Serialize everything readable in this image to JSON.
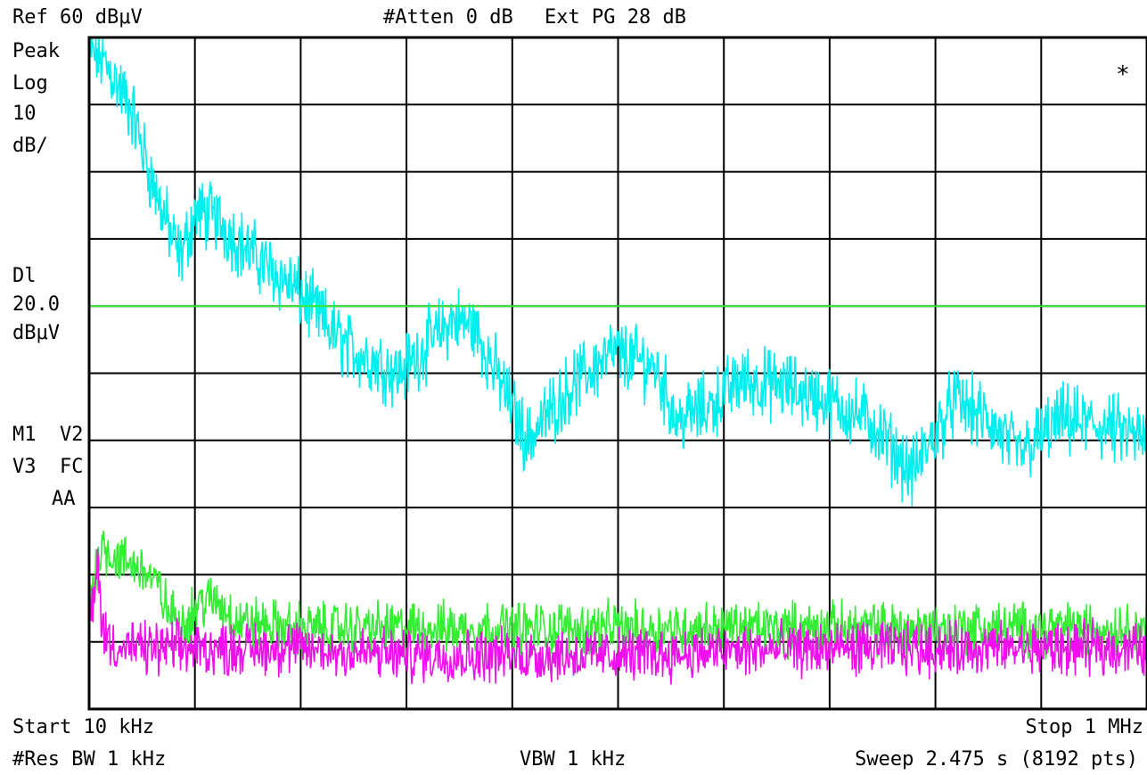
{
  "header": {
    "ref": "Ref 60 dBμV",
    "atten": "#Atten 0 dB",
    "ext_pg": "Ext PG 28 dB"
  },
  "left_panel": {
    "detector": "Peak",
    "scale_type": "Log",
    "scale_value": "10",
    "scale_unit": "dB/",
    "dl_label": "Dl",
    "dl_value": "20.0",
    "dl_unit": "dBμV",
    "traces_line1": "M1  V2",
    "traces_line2": "V3  FC",
    "traces_line3": "AA"
  },
  "indicator": "*",
  "footer": {
    "start": "Start 10 kHz",
    "stop": "Stop 1 MHz",
    "res_bw": "#Res BW 1 kHz",
    "vbw": "VBW 1 kHz",
    "sweep": "Sweep 2.475 s (8192 pts)"
  },
  "chart_data": {
    "type": "line",
    "xlabel": "",
    "ylabel": "",
    "xlim": [
      10,
      1000
    ],
    "x_unit": "kHz",
    "ylim": [
      -40,
      60
    ],
    "y_unit": "dBμV",
    "grid": true,
    "display_line": 20.0,
    "display_line_color": "#33ee33",
    "series": [
      {
        "color": "#00eeee",
        "x": [
          10,
          20,
          30,
          50,
          70,
          95,
          110,
          130,
          160,
          200,
          250,
          300,
          350,
          370,
          400,
          420,
          460,
          500,
          540,
          560,
          590,
          620,
          660,
          700,
          740,
          780,
          820,
          850,
          880,
          920,
          960,
          1000
        ],
        "y": [
          58,
          57,
          55,
          49,
          38,
          27,
          34,
          33,
          28,
          23,
          14,
          10,
          18,
          17,
          7,
          0,
          8,
          13,
          11,
          3,
          5,
          9,
          8,
          6,
          3,
          -5,
          6,
          3,
          -2,
          3,
          2,
          0
        ]
      },
      {
        "color": "#33ee33",
        "x": [
          10,
          15,
          22,
          30,
          40,
          60,
          75,
          85,
          100,
          115,
          130,
          150,
          200,
          300,
          500,
          700,
          1000
        ],
        "y": [
          -24,
          -20,
          -15,
          -17,
          -18,
          -19,
          -22,
          -26,
          -27,
          -24,
          -24,
          -27,
          -28,
          -28,
          -28,
          -28,
          -28
        ]
      },
      {
        "color": "#ee11ee",
        "x": [
          10,
          15,
          18,
          22,
          25,
          30,
          40,
          60,
          100,
          200,
          300,
          500,
          700,
          1000
        ],
        "y": [
          -26,
          -24,
          -18,
          -27,
          -29,
          -30,
          -31,
          -31,
          -31,
          -31,
          -32,
          -32,
          -31,
          -31
        ]
      }
    ]
  }
}
